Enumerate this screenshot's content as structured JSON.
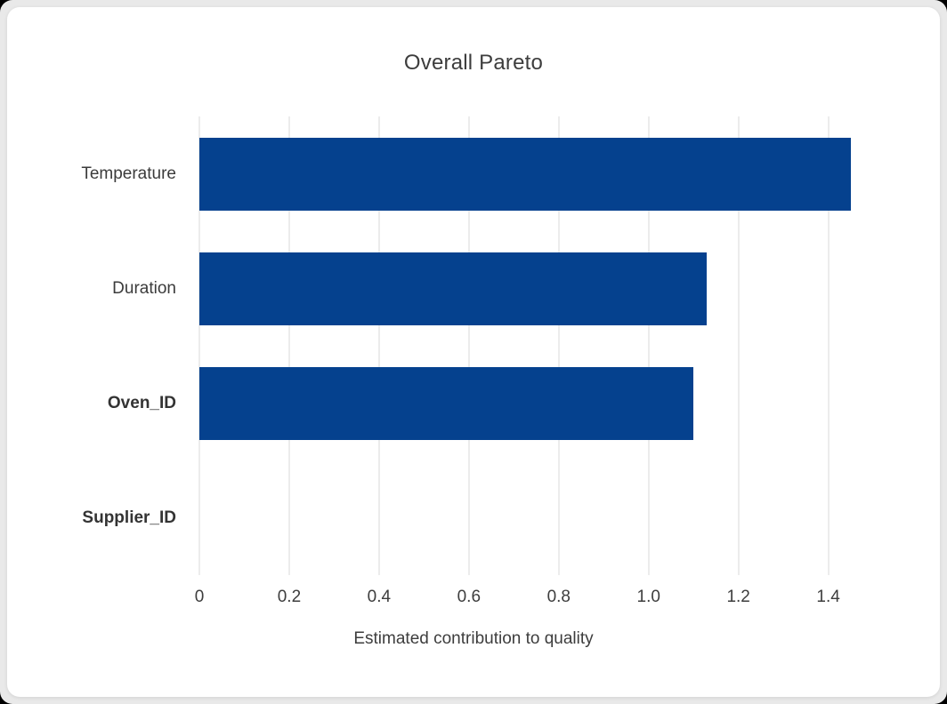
{
  "window": {
    "background_color": "#e9e9e9",
    "card_color": "#ffffff"
  },
  "chart_data": {
    "type": "bar",
    "orientation": "horizontal",
    "title": "Overall Pareto",
    "xlabel": "Estimated contribution to quality",
    "ylabel": "",
    "categories": [
      "Temperature",
      "Duration",
      "Oven_ID",
      "Supplier_ID"
    ],
    "values": [
      1.45,
      1.13,
      1.1,
      0
    ],
    "bold_categories": [
      "Oven_ID",
      "Supplier_ID"
    ],
    "xlim": [
      0,
      1.585
    ],
    "xticks": [
      0,
      0.2,
      0.4,
      0.6,
      0.8,
      1.0,
      1.2,
      1.4
    ],
    "xtick_labels": [
      "0",
      "0.2",
      "0.4",
      "0.6",
      "0.8",
      "1.0",
      "1.2",
      "1.4"
    ],
    "grid": true,
    "gridline_color": "#ececec",
    "bar_color": "#05418e",
    "text_color": "#3d3d3d",
    "legend": null
  }
}
